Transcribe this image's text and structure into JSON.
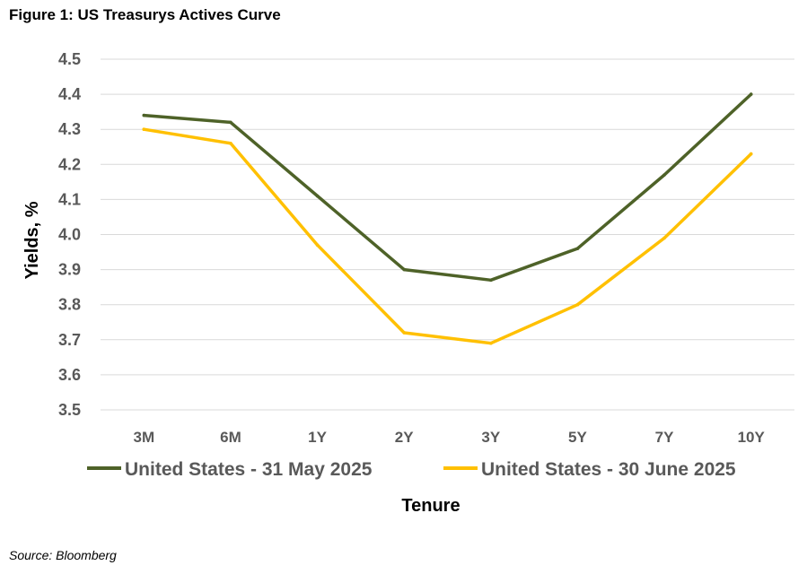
{
  "figure_title": "Figure 1: US Treasurys Actives Curve",
  "source": "Source: Bloomberg",
  "chart_data": {
    "type": "line",
    "xlabel": "Tenure",
    "ylabel": "Yields, %",
    "ylim": [
      3.5,
      4.5
    ],
    "yticks": [
      "3.5",
      "3.6",
      "3.7",
      "3.8",
      "3.9",
      "4.0",
      "4.1",
      "4.2",
      "4.3",
      "4.4",
      "4.5"
    ],
    "categories": [
      "3M",
      "6M",
      "1Y",
      "2Y",
      "3Y",
      "5Y",
      "7Y",
      "10Y"
    ],
    "grid": true,
    "legend_position": "bottom",
    "series": [
      {
        "name": "United States - 31 May 2025",
        "color": "#4E6228",
        "values": [
          4.34,
          4.32,
          4.11,
          3.9,
          3.87,
          3.96,
          4.17,
          4.4
        ]
      },
      {
        "name": "United States - 30 June 2025",
        "color": "#FFC000",
        "values": [
          4.3,
          4.26,
          3.97,
          3.72,
          3.69,
          3.8,
          3.99,
          4.23
        ]
      }
    ]
  }
}
